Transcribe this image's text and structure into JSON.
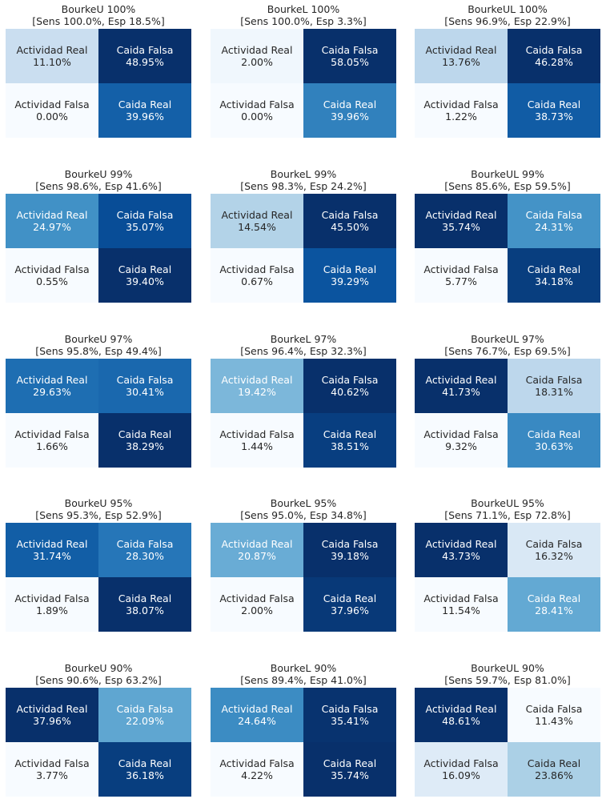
{
  "chart_data": [
    {
      "type": "heatmap",
      "title": "BourkeU 100%",
      "subtitle": "[Sens 100.0%, Esp 18.5%]",
      "cells": [
        {
          "label": "Actividad Real",
          "value": "11.10%"
        },
        {
          "label": "Caida Falsa",
          "value": "48.95%"
        },
        {
          "label": "Actividad Falsa",
          "value": "0.00%"
        },
        {
          "label": "Caida Real",
          "value": "39.96%"
        }
      ]
    },
    {
      "type": "heatmap",
      "title": "BourkeL 100%",
      "subtitle": "[Sens 100.0%, Esp 3.3%]",
      "cells": [
        {
          "label": "Actividad Real",
          "value": "2.00%"
        },
        {
          "label": "Caida Falsa",
          "value": "58.05%"
        },
        {
          "label": "Actividad Falsa",
          "value": "0.00%"
        },
        {
          "label": "Caida Real",
          "value": "39.96%"
        }
      ]
    },
    {
      "type": "heatmap",
      "title": "BourkeUL 100%",
      "subtitle": "[Sens 96.9%, Esp 22.9%]",
      "cells": [
        {
          "label": "Actividad Real",
          "value": "13.76%"
        },
        {
          "label": "Caida Falsa",
          "value": "46.28%"
        },
        {
          "label": "Actividad Falsa",
          "value": "1.22%"
        },
        {
          "label": "Caida Real",
          "value": "38.73%"
        }
      ]
    },
    {
      "type": "heatmap",
      "title": "BourkeU 99%",
      "subtitle": "[Sens 98.6%, Esp 41.6%]",
      "cells": [
        {
          "label": "Actividad Real",
          "value": "24.97%"
        },
        {
          "label": "Caida Falsa",
          "value": "35.07%"
        },
        {
          "label": "Actividad Falsa",
          "value": "0.55%"
        },
        {
          "label": "Caida Real",
          "value": "39.40%"
        }
      ]
    },
    {
      "type": "heatmap",
      "title": "BourkeL 99%",
      "subtitle": "[Sens 98.3%, Esp 24.2%]",
      "cells": [
        {
          "label": "Actividad Real",
          "value": "14.54%"
        },
        {
          "label": "Caida Falsa",
          "value": "45.50%"
        },
        {
          "label": "Actividad Falsa",
          "value": "0.67%"
        },
        {
          "label": "Caida Real",
          "value": "39.29%"
        }
      ]
    },
    {
      "type": "heatmap",
      "title": "BourkeUL 99%",
      "subtitle": "[Sens 85.6%, Esp 59.5%]",
      "cells": [
        {
          "label": "Actividad Real",
          "value": "35.74%"
        },
        {
          "label": "Caida Falsa",
          "value": "24.31%"
        },
        {
          "label": "Actividad Falsa",
          "value": "5.77%"
        },
        {
          "label": "Caida Real",
          "value": "34.18%"
        }
      ]
    },
    {
      "type": "heatmap",
      "title": "BourkeU 97%",
      "subtitle": "[Sens 95.8%, Esp 49.4%]",
      "cells": [
        {
          "label": "Actividad Real",
          "value": "29.63%"
        },
        {
          "label": "Caida Falsa",
          "value": "30.41%"
        },
        {
          "label": "Actividad Falsa",
          "value": "1.66%"
        },
        {
          "label": "Caida Real",
          "value": "38.29%"
        }
      ]
    },
    {
      "type": "heatmap",
      "title": "BourkeL 97%",
      "subtitle": "[Sens 96.4%, Esp 32.3%]",
      "cells": [
        {
          "label": "Actividad Real",
          "value": "19.42%"
        },
        {
          "label": "Caida Falsa",
          "value": "40.62%"
        },
        {
          "label": "Actividad Falsa",
          "value": "1.44%"
        },
        {
          "label": "Caida Real",
          "value": "38.51%"
        }
      ]
    },
    {
      "type": "heatmap",
      "title": "BourkeUL 97%",
      "subtitle": "[Sens 76.7%, Esp 69.5%]",
      "cells": [
        {
          "label": "Actividad Real",
          "value": "41.73%"
        },
        {
          "label": "Caida Falsa",
          "value": "18.31%"
        },
        {
          "label": "Actividad Falsa",
          "value": "9.32%"
        },
        {
          "label": "Caida Real",
          "value": "30.63%"
        }
      ]
    },
    {
      "type": "heatmap",
      "title": "BourkeU 95%",
      "subtitle": "[Sens 95.3%, Esp 52.9%]",
      "cells": [
        {
          "label": "Actividad Real",
          "value": "31.74%"
        },
        {
          "label": "Caida Falsa",
          "value": "28.30%"
        },
        {
          "label": "Actividad Falsa",
          "value": "1.89%"
        },
        {
          "label": "Caida Real",
          "value": "38.07%"
        }
      ]
    },
    {
      "type": "heatmap",
      "title": "BourkeL 95%",
      "subtitle": "[Sens 95.0%, Esp 34.8%]",
      "cells": [
        {
          "label": "Actividad Real",
          "value": "20.87%"
        },
        {
          "label": "Caida Falsa",
          "value": "39.18%"
        },
        {
          "label": "Actividad Falsa",
          "value": "2.00%"
        },
        {
          "label": "Caida Real",
          "value": "37.96%"
        }
      ]
    },
    {
      "type": "heatmap",
      "title": "BourkeUL 95%",
      "subtitle": "[Sens 71.1%, Esp 72.8%]",
      "cells": [
        {
          "label": "Actividad Real",
          "value": "43.73%"
        },
        {
          "label": "Caida Falsa",
          "value": "16.32%"
        },
        {
          "label": "Actividad Falsa",
          "value": "11.54%"
        },
        {
          "label": "Caida Real",
          "value": "28.41%"
        }
      ]
    },
    {
      "type": "heatmap",
      "title": "BourkeU 90%",
      "subtitle": "[Sens 90.6%, Esp 63.2%]",
      "cells": [
        {
          "label": "Actividad Real",
          "value": "37.96%"
        },
        {
          "label": "Caida Falsa",
          "value": "22.09%"
        },
        {
          "label": "Actividad Falsa",
          "value": "3.77%"
        },
        {
          "label": "Caida Real",
          "value": "36.18%"
        }
      ]
    },
    {
      "type": "heatmap",
      "title": "BourkeL 90%",
      "subtitle": "[Sens 89.4%, Esp 41.0%]",
      "cells": [
        {
          "label": "Actividad Real",
          "value": "24.64%"
        },
        {
          "label": "Caida Falsa",
          "value": "35.41%"
        },
        {
          "label": "Actividad Falsa",
          "value": "4.22%"
        },
        {
          "label": "Caida Real",
          "value": "35.74%"
        }
      ]
    },
    {
      "type": "heatmap",
      "title": "BourkeUL 90%",
      "subtitle": "[Sens 59.7%, Esp 81.0%]",
      "cells": [
        {
          "label": "Actividad Real",
          "value": "48.61%"
        },
        {
          "label": "Caida Falsa",
          "value": "11.43%"
        },
        {
          "label": "Actividad Falsa",
          "value": "16.09%"
        },
        {
          "label": "Caida Real",
          "value": "23.86%"
        }
      ]
    }
  ]
}
